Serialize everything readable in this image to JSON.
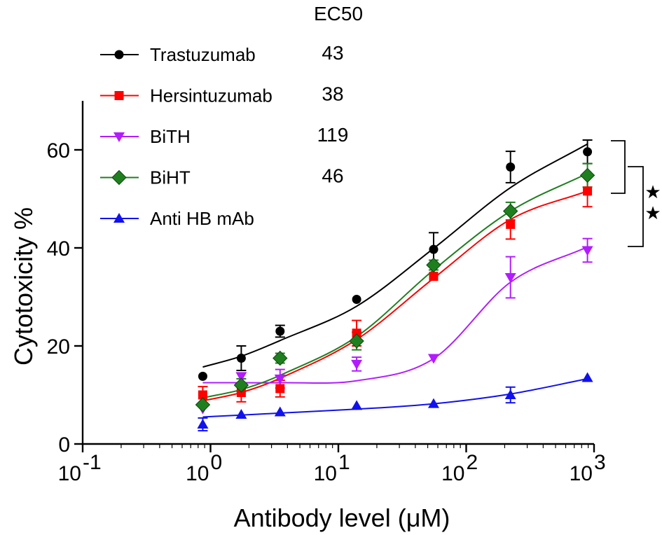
{
  "chart_data": {
    "type": "line",
    "title": "",
    "xlabel": "Antibody level (μM)",
    "ylabel": "Cytotoxicity %",
    "xscale": "log",
    "xlim": [
      0.1,
      1000
    ],
    "ylim": [
      0,
      70
    ],
    "x_ticks": [
      {
        "value": 0.1,
        "base": "10",
        "exp": "-1"
      },
      {
        "value": 1,
        "base": "10",
        "exp": "0"
      },
      {
        "value": 10,
        "base": "10",
        "exp": "1"
      },
      {
        "value": 100,
        "base": "10",
        "exp": "2"
      },
      {
        "value": 1000,
        "base": "10",
        "exp": "3"
      }
    ],
    "y_ticks": [
      0,
      20,
      40,
      60
    ],
    "legend_header": "EC50",
    "legend_position": "top-left",
    "series": [
      {
        "name": "Trastuzumab",
        "ec50": "43",
        "color": "#000000",
        "marker": "circle",
        "x": [
          0.87,
          1.74,
          3.5,
          13.9,
          55.6,
          222,
          888
        ],
        "y": [
          13.8,
          17.5,
          23.0,
          29.5,
          39.7,
          56.5,
          59.6
        ],
        "err": [
          0,
          2.5,
          1.2,
          0,
          3.4,
          3.2,
          2.4
        ],
        "fit": [
          15.7,
          17.9,
          21.1,
          28.1,
          39.9,
          52.3,
          61.2
        ]
      },
      {
        "name": "Hersintuzumab",
        "ec50": "38",
        "color": "#ff0000",
        "marker": "square",
        "x": [
          0.87,
          1.74,
          3.5,
          13.9,
          55.6,
          222,
          888
        ],
        "y": [
          10.0,
          10.5,
          11.3,
          22.6,
          34.2,
          44.8,
          51.6
        ],
        "err": [
          1.7,
          1.9,
          1.7,
          2.6,
          0,
          3.0,
          3.2
        ],
        "fit": [
          8.8,
          10.5,
          13.4,
          21.3,
          33.8,
          45.8,
          51.6
        ]
      },
      {
        "name": "BiTH",
        "ec50": "119",
        "color": "#b31bff",
        "marker": "triangle-down",
        "x": [
          0.87,
          1.74,
          3.5,
          13.9,
          55.6,
          222,
          888
        ],
        "y": [
          7.2,
          13.8,
          13.3,
          16.3,
          17.5,
          34.0,
          39.5
        ],
        "err": [
          0,
          0,
          1.9,
          1.4,
          0,
          4.2,
          2.4
        ],
        "fit": [
          12.5,
          12.5,
          12.5,
          12.9,
          17.4,
          33.0,
          40.2
        ]
      },
      {
        "name": "BiHT",
        "ec50": "46",
        "color": "#1f7f1f",
        "marker": "diamond",
        "x": [
          0.87,
          1.74,
          3.5,
          13.9,
          55.6,
          222,
          888
        ],
        "y": [
          8.0,
          12.0,
          17.5,
          21.0,
          36.5,
          47.5,
          54.8
        ],
        "err": [
          0,
          1.3,
          1.0,
          1.8,
          1.0,
          1.8,
          2.4
        ],
        "fit": [
          9.4,
          11.1,
          14.0,
          21.9,
          35.5,
          47.5,
          55.2
        ]
      },
      {
        "name": "Anti HB mAb",
        "ec50": "",
        "color": "#1111ee",
        "marker": "triangle-up",
        "x": [
          0.87,
          1.74,
          3.5,
          13.9,
          55.6,
          222,
          888
        ],
        "y": [
          4.0,
          6.0,
          6.5,
          7.8,
          8.2,
          10.0,
          13.5
        ],
        "err": [
          1.3,
          0,
          0,
          0,
          0,
          1.6,
          0
        ],
        "fit": [
          5.5,
          5.9,
          6.3,
          7.1,
          8.2,
          10.2,
          13.3
        ]
      }
    ],
    "annotations": [
      {
        "text": "★",
        "note": "significance bracket Trastuzumab vs Hersintuzumab"
      },
      {
        "text": "★",
        "note": "significance bracket BiHT vs BiTH"
      }
    ]
  }
}
